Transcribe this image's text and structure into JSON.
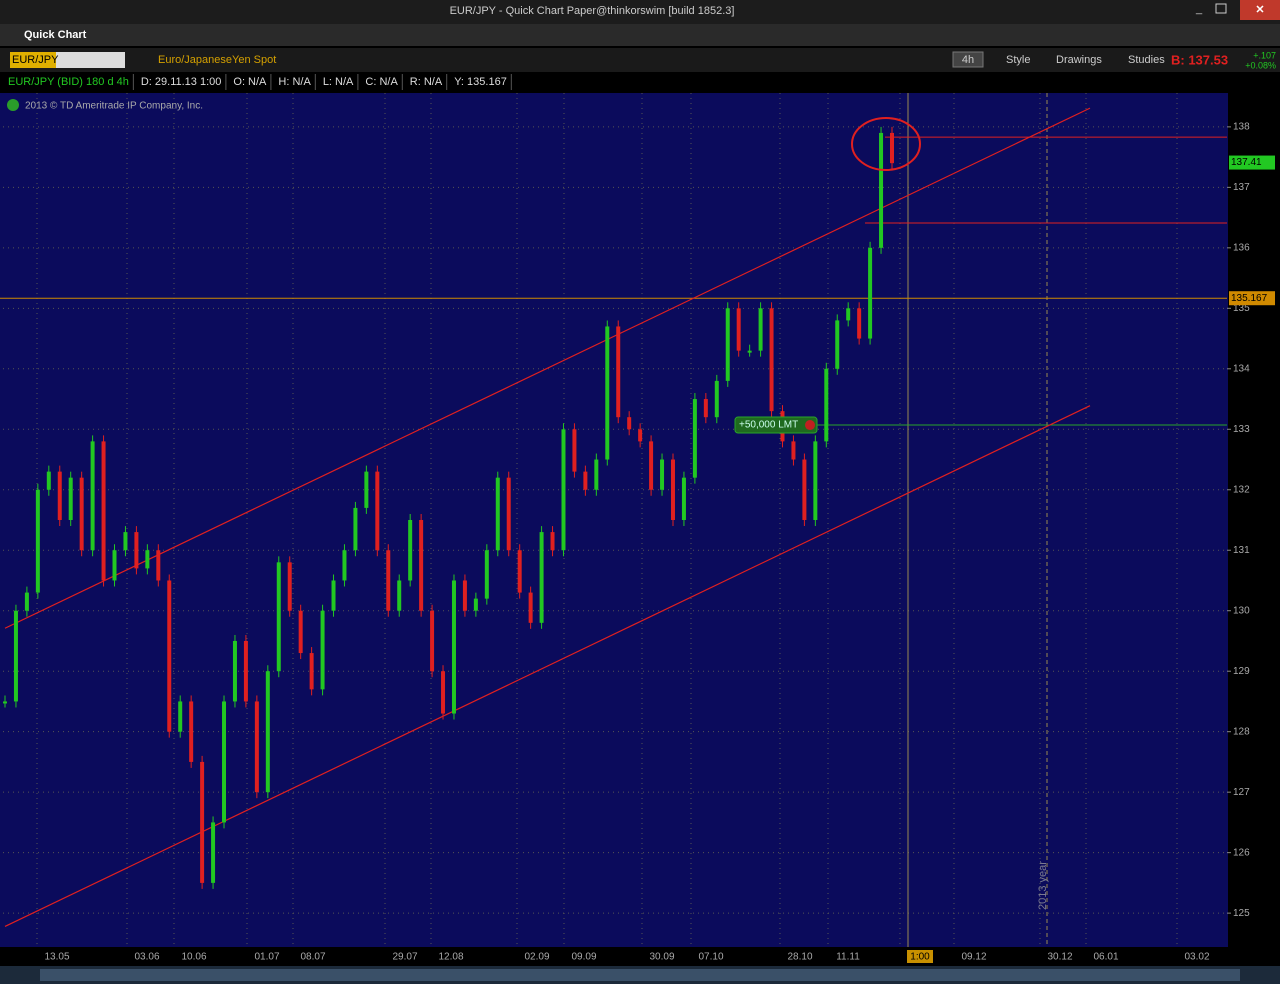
{
  "window_title": "EUR/JPY - Quick Chart Paper@thinkorswim [build 1852.3]",
  "panel_title": "Quick Chart",
  "toolbar": {
    "symbol": "EUR/JPY",
    "description": "Euro/JapaneseYen Spot",
    "aggregation": "4h",
    "buttons": [
      "Style",
      "Drawings",
      "Studies"
    ],
    "bid": "B: 137.53",
    "change": "+.107",
    "change_pct": "+0.08%"
  },
  "info_bar": [
    "EUR/JPY (BID) 180 d 4h",
    "D: 29.11.13 1:00",
    "O: N/A",
    "H: N/A",
    "L: N/A",
    "C: N/A",
    "R: N/A",
    "Y: 135.167"
  ],
  "copyright": "2013 © TD Ameritrade IP Company, Inc.",
  "chart_data": {
    "type": "candlestick",
    "color_up": "#22c822",
    "color_down": "#e02020",
    "values": [
      128.5,
      130,
      130.3,
      132,
      132.3,
      131.5,
      132.2,
      131,
      132.8,
      130.5,
      131,
      131.3,
      130.7,
      131,
      130.5,
      128,
      128.5,
      127.5,
      125.5,
      126.5,
      128.5,
      129.5,
      128.5,
      127,
      129,
      130.8,
      130,
      129.3,
      128.7,
      130,
      130.5,
      131,
      131.7,
      132.3,
      131,
      130,
      130.5,
      131.5,
      130,
      129,
      128.3,
      130.5,
      130,
      130.2,
      131,
      132.2,
      131,
      130.3,
      129.8,
      131.3,
      131,
      133,
      132.3,
      132,
      132.5,
      134.7,
      133.2,
      133,
      132.8,
      132,
      132.5,
      131.5,
      132.2,
      133.5,
      133.2,
      133.8,
      135,
      134.3,
      134.3,
      135,
      133.3,
      132.8,
      132.5,
      131.5,
      132.8,
      134,
      134.8,
      135,
      134.5,
      136,
      137.9,
      137.4
    ],
    "x_labels": [
      "13.05",
      "03.06",
      "10.06",
      "01.07",
      "08.07",
      "29.07",
      "12.08",
      "02.09",
      "09.09",
      "30.09",
      "07.10",
      "28.10",
      "11.11",
      "1:00",
      "09.12",
      "30.12",
      "06.01",
      "03.02"
    ],
    "ylim": [
      124.44,
      138.56
    ],
    "yticks": [
      125,
      126,
      127,
      128,
      129,
      130,
      131,
      132,
      133,
      134,
      135,
      136,
      137,
      138
    ],
    "grid": true,
    "trendlines": [
      {
        "start": 129.71,
        "end": 138.31,
        "color": "#e02020"
      },
      {
        "start": 124.78,
        "end": 133.39,
        "color": "#e02020"
      }
    ],
    "levels": [
      {
        "value": 137.83,
        "color": "#e02020"
      },
      {
        "value": 136.41,
        "color": "#e02020"
      },
      {
        "value": 135.167,
        "color": "#d08a00"
      },
      {
        "value": 133.07,
        "color": "#2aa52a"
      }
    ],
    "order_label": "+50,000 LMT",
    "last_price": 137.41,
    "year_marker": "2013 year"
  }
}
